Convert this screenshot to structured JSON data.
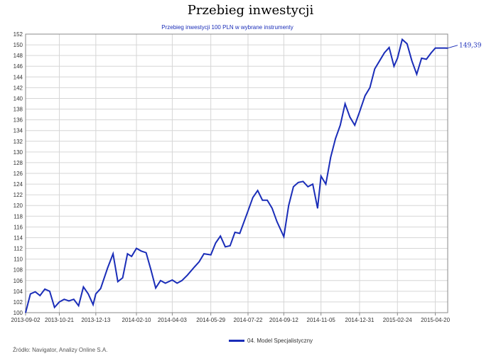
{
  "page": {
    "title": "Przebieg inwestycji"
  },
  "source": "Źródło: Navigator, Analizy Online S.A.",
  "chart_data": {
    "type": "line",
    "title": "Przebieg inwestycji 100 PLN w wybrane instrumenty",
    "xlabel": "",
    "ylabel": "",
    "ylim": [
      100,
      152
    ],
    "yticks": [
      100,
      102,
      104,
      106,
      108,
      110,
      112,
      114,
      116,
      118,
      120,
      122,
      124,
      126,
      128,
      130,
      132,
      134,
      136,
      138,
      140,
      142,
      144,
      146,
      148,
      150,
      152
    ],
    "xticks": [
      "2013-09-02",
      "2013-10-21",
      "2013-12-13",
      "2014-02-10",
      "2014-04-03",
      "2014-05-29",
      "2014-07-22",
      "2014-09-12",
      "2014-11-05",
      "2014-12-31",
      "2015-02-24",
      "2015-04-20"
    ],
    "grid": true,
    "legend_position": "bottom",
    "end_label": "149,39",
    "colors": {
      "line": "#1a2db8",
      "grid": "#d6d6d6",
      "axis": "#888888",
      "title": "#1a2db8"
    },
    "series": [
      {
        "name": "04. Model Specjalistyczny",
        "x": [
          "2013-09-02",
          "2013-09-09",
          "2013-09-16",
          "2013-09-23",
          "2013-09-30",
          "2013-10-07",
          "2013-10-14",
          "2013-10-21",
          "2013-10-28",
          "2013-11-04",
          "2013-11-11",
          "2013-11-18",
          "2013-11-25",
          "2013-12-02",
          "2013-12-09",
          "2013-12-13",
          "2013-12-20",
          "2013-12-30",
          "2014-01-07",
          "2014-01-14",
          "2014-01-21",
          "2014-01-28",
          "2014-02-03",
          "2014-02-10",
          "2014-02-17",
          "2014-02-24",
          "2014-03-03",
          "2014-03-10",
          "2014-03-17",
          "2014-03-24",
          "2014-04-03",
          "2014-04-10",
          "2014-04-17",
          "2014-04-25",
          "2014-05-05",
          "2014-05-12",
          "2014-05-19",
          "2014-05-29",
          "2014-06-05",
          "2014-06-12",
          "2014-06-19",
          "2014-06-26",
          "2014-07-03",
          "2014-07-10",
          "2014-07-22",
          "2014-07-29",
          "2014-08-05",
          "2014-08-12",
          "2014-08-19",
          "2014-08-26",
          "2014-09-02",
          "2014-09-12",
          "2014-09-19",
          "2014-09-26",
          "2014-10-03",
          "2014-10-10",
          "2014-10-17",
          "2014-10-24",
          "2014-10-31",
          "2014-11-05",
          "2014-11-12",
          "2014-11-19",
          "2014-11-26",
          "2014-12-03",
          "2014-12-10",
          "2014-12-17",
          "2014-12-24",
          "2014-12-31",
          "2015-01-08",
          "2015-01-15",
          "2015-01-22",
          "2015-01-29",
          "2015-02-05",
          "2015-02-12",
          "2015-02-19",
          "2015-02-24",
          "2015-03-03",
          "2015-03-10",
          "2015-03-17",
          "2015-03-24",
          "2015-03-31",
          "2015-04-07",
          "2015-04-14",
          "2015-04-20",
          "2015-04-27",
          "2015-05-04",
          "2015-05-08"
        ],
        "values": [
          100.0,
          103.5,
          103.9,
          103.2,
          104.4,
          104.0,
          101.0,
          102.0,
          102.5,
          102.2,
          102.5,
          101.3,
          104.8,
          103.5,
          101.5,
          103.5,
          104.5,
          108.3,
          111.0,
          105.8,
          106.5,
          111.0,
          110.5,
          112.0,
          111.5,
          111.2,
          108.0,
          104.6,
          106.0,
          105.5,
          106.1,
          105.5,
          106.0,
          107.0,
          108.5,
          109.5,
          111.0,
          110.8,
          113.0,
          114.3,
          112.3,
          112.5,
          115.0,
          114.8,
          119.0,
          121.5,
          122.8,
          121.0,
          121.0,
          119.5,
          117.0,
          114.2,
          120.0,
          123.5,
          124.3,
          124.5,
          123.5,
          124.0,
          119.5,
          125.5,
          124.0,
          129.0,
          132.5,
          135.0,
          139.0,
          136.5,
          135.0,
          137.5,
          140.5,
          142.0,
          145.5,
          147.0,
          148.5,
          149.5,
          146.0,
          147.5,
          151.0,
          150.2,
          147.0,
          144.5,
          147.5,
          147.3,
          148.5,
          149.4,
          149.4,
          149.4,
          149.39
        ]
      }
    ]
  }
}
